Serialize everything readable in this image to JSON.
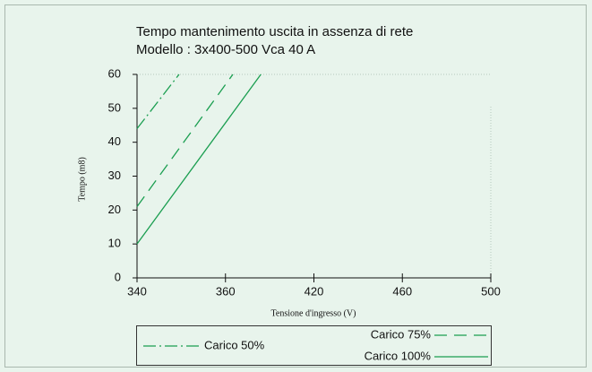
{
  "chart_data": {
    "type": "line",
    "title": "Tempo mantenimento uscita in assenza di rete",
    "subtitle": "Modello : 3x400-500 Vca   40 A",
    "x_label": "Tensione d'ingresso (V)",
    "y_label": "Tempo (m8)",
    "xlim": [
      340,
      500
    ],
    "xticks": [
      340,
      360,
      420,
      460,
      500
    ],
    "ylim": [
      0,
      60
    ],
    "yticks": [
      0,
      10,
      20,
      30,
      40,
      50,
      60
    ],
    "series": [
      {
        "name": "Carico 50%",
        "color": "#1a9e50",
        "dash": "dash-dot",
        "x": [
          340,
          349.5
        ],
        "values": [
          44,
          60
        ]
      },
      {
        "name": "Carico 75%",
        "color": "#1a9e50",
        "dash": "dashed",
        "x": [
          340,
          365
        ],
        "values": [
          21,
          60
        ]
      },
      {
        "name": "Carico 100%",
        "color": "#1a9e50",
        "dash": "solid",
        "x": [
          340,
          384
        ],
        "values": [
          10,
          60
        ]
      }
    ]
  }
}
